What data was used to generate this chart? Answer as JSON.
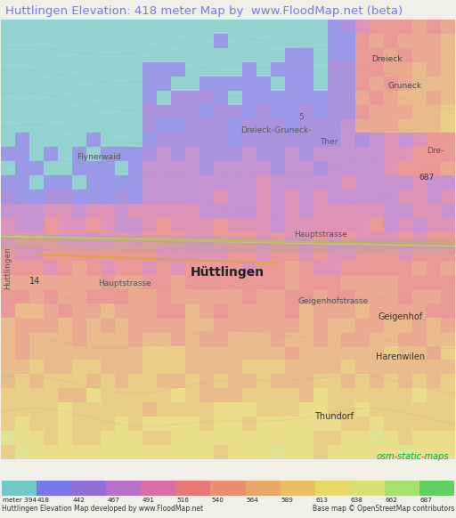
{
  "title": "Huttlingen Elevation: 418 meter Map by  www.FloodMap.net (beta)",
  "title_color": "#7777ee",
  "title_fontsize": 9.5,
  "bg_color": "#f0f0e8",
  "map_bg": "#ddeedd",
  "colorbar_labels": [
    "meter 394",
    "418",
    "442",
    "467",
    "491",
    "516",
    "540",
    "564",
    "589",
    "613",
    "638",
    "662",
    "687"
  ],
  "colorbar_colors": [
    "#70c8c8",
    "#7878e8",
    "#9070d8",
    "#b870c8",
    "#d870a8",
    "#e87878",
    "#e89070",
    "#e8a868",
    "#e8c060",
    "#e8d868",
    "#d8e070",
    "#a8e070",
    "#60d060"
  ],
  "footer_left": "Huttlingen Elevation Map developed by www.FloodMap.net",
  "footer_right": "Base map © OpenStreetMap contributors",
  "osm_label": "osm-static-maps",
  "osm_color": "#00aa44",
  "title_bg": "#f0f0e8",
  "cb_bg": "#f0f0e8"
}
